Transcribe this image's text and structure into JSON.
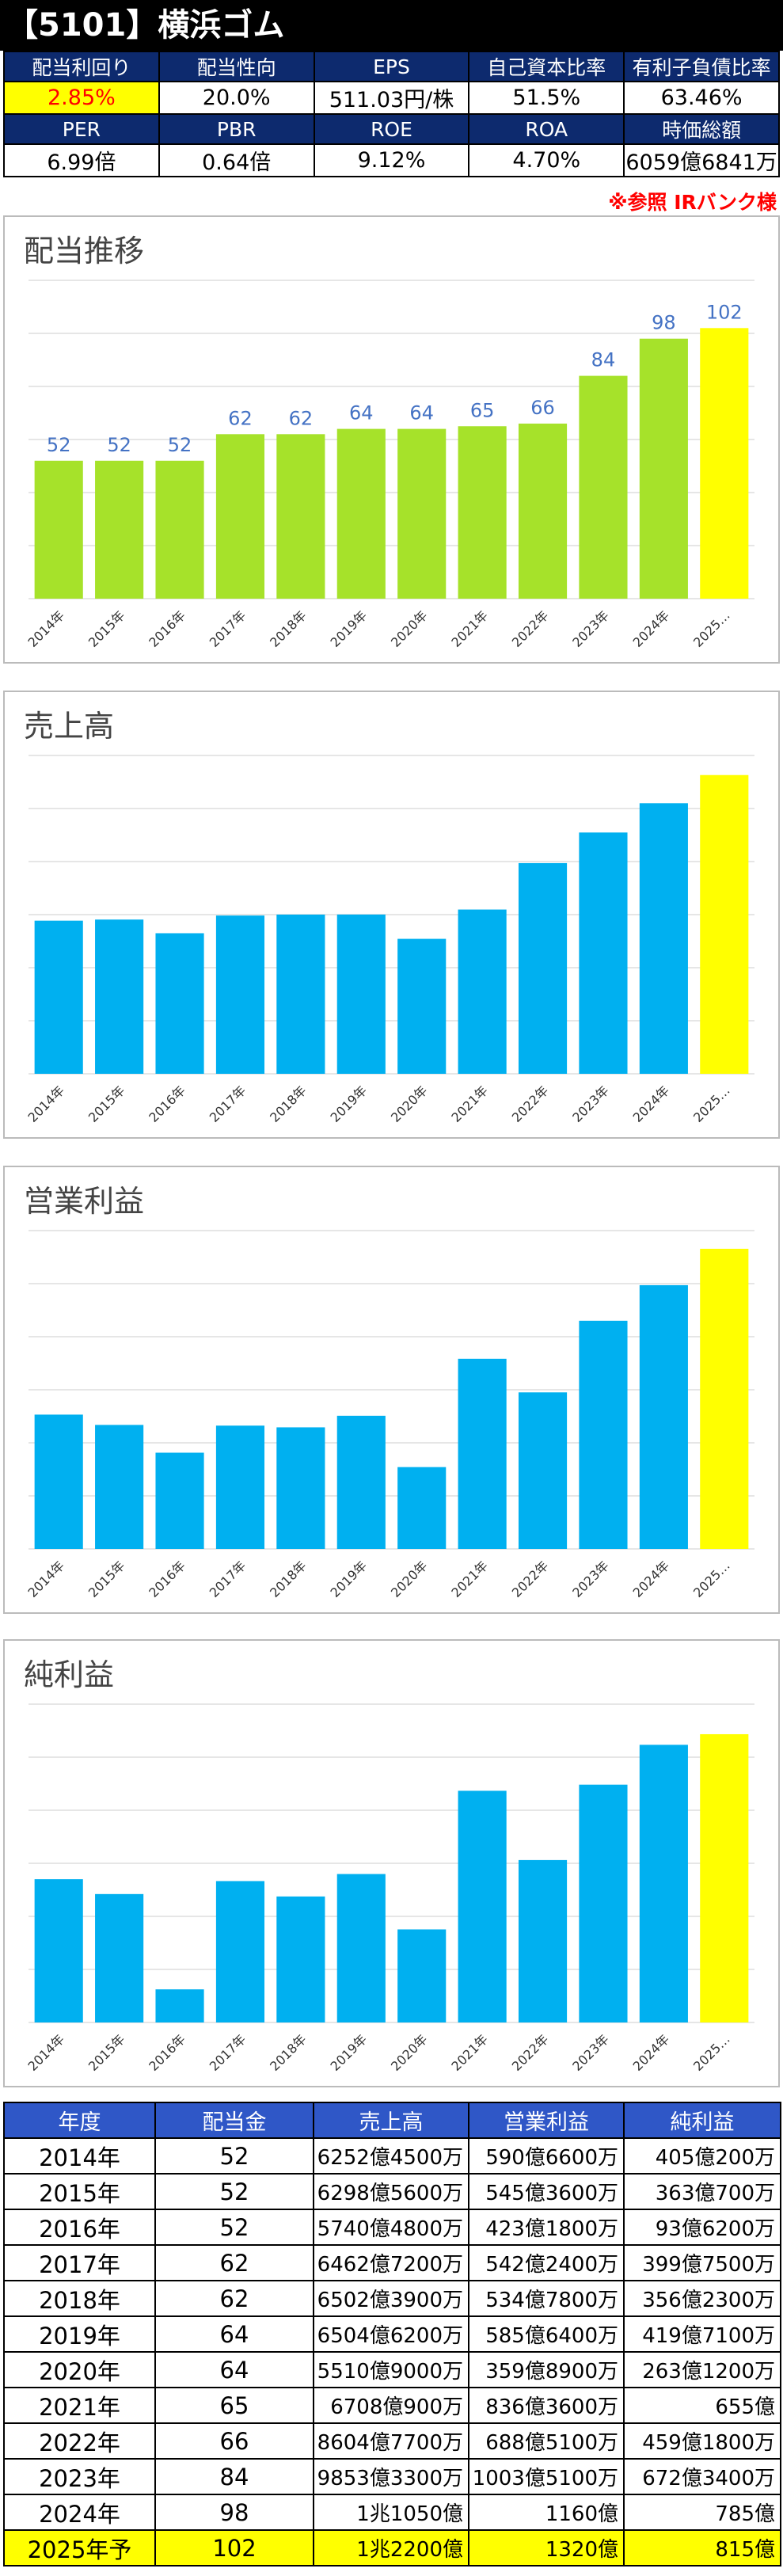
{
  "header": {
    "title": "【5101】横浜ゴム"
  },
  "metrics": {
    "row1_labels": [
      "配当利回り",
      "配当性向",
      "EPS",
      "自己資本比率",
      "有利子負債比率"
    ],
    "row1_values": [
      "2.85%",
      "20.0%",
      "511.03円/株",
      "51.5%",
      "63.46%"
    ],
    "row2_labels": [
      "PER",
      "PBR",
      "ROE",
      "ROA",
      "時価総額"
    ],
    "row2_values": [
      "6.99倍",
      "0.64倍",
      "9.12%",
      "4.70%",
      "6059億6841万"
    ]
  },
  "note": "※参照 IRバンク様",
  "colors": {
    "dividend_bar": "#a6e22a",
    "bar": "#00b0f0",
    "forecast_bar": "#ffff00",
    "value_label": "#4472c4",
    "header_bg": "#0d2a6e",
    "table_header_bg": "#2f57c7"
  },
  "chart_data": [
    {
      "type": "bar",
      "title": "配当推移",
      "categories": [
        "2014年",
        "2015年",
        "2016年",
        "2017年",
        "2018年",
        "2019年",
        "2020年",
        "2021年",
        "2022年",
        "2023年",
        "2024年",
        "2025…"
      ],
      "values": [
        52,
        52,
        52,
        62,
        62,
        64,
        64,
        65,
        66,
        84,
        98,
        102
      ],
      "data_labels": [
        "52",
        "52",
        "52",
        "62",
        "62",
        "64",
        "64",
        "65",
        "66",
        "84",
        "98",
        "102"
      ],
      "ylim": [
        0,
        120
      ],
      "grid": true
    },
    {
      "type": "bar",
      "title": "売上高",
      "categories": [
        "2014年",
        "2015年",
        "2016年",
        "2017年",
        "2018年",
        "2019年",
        "2020年",
        "2021年",
        "2022年",
        "2023年",
        "2024年",
        "2025…"
      ],
      "values": [
        6252.45,
        6298.56,
        5740.48,
        6462.72,
        6502.39,
        6504.62,
        5510.9,
        6708.09,
        8604.77,
        9853.33,
        11050,
        12200
      ],
      "ylim": [
        0,
        13000
      ],
      "grid": true
    },
    {
      "type": "bar",
      "title": "営業利益",
      "categories": [
        "2014年",
        "2015年",
        "2016年",
        "2017年",
        "2018年",
        "2019年",
        "2020年",
        "2021年",
        "2022年",
        "2023年",
        "2024年",
        "2025…"
      ],
      "values": [
        590.66,
        545.36,
        423.18,
        542.24,
        534.78,
        585.64,
        359.89,
        836.36,
        688.51,
        1003.51,
        1160,
        1320
      ],
      "ylim": [
        0,
        1400
      ],
      "grid": true
    },
    {
      "type": "bar",
      "title": "純利益",
      "categories": [
        "2014年",
        "2015年",
        "2016年",
        "2017年",
        "2018年",
        "2019年",
        "2020年",
        "2021年",
        "2022年",
        "2023年",
        "2024年",
        "2025…"
      ],
      "values": [
        405.02,
        363.07,
        93.62,
        399.75,
        356.23,
        419.71,
        263.12,
        655,
        459.18,
        672.34,
        785,
        815
      ],
      "ylim": [
        0,
        900
      ],
      "grid": true
    }
  ],
  "table": {
    "headers": [
      "年度",
      "配当金",
      "売上高",
      "営業利益",
      "純利益"
    ],
    "rows": [
      [
        "2014年",
        "52",
        "6252億4500万",
        "590億6600万",
        "405億200万"
      ],
      [
        "2015年",
        "52",
        "6298億5600万",
        "545億3600万",
        "363億700万"
      ],
      [
        "2016年",
        "52",
        "5740億4800万",
        "423億1800万",
        "93億6200万"
      ],
      [
        "2017年",
        "62",
        "6462億7200万",
        "542億2400万",
        "399億7500万"
      ],
      [
        "2018年",
        "62",
        "6502億3900万",
        "534億7800万",
        "356億2300万"
      ],
      [
        "2019年",
        "64",
        "6504億6200万",
        "585億6400万",
        "419億7100万"
      ],
      [
        "2020年",
        "64",
        "5510億9000万",
        "359億8900万",
        "263億1200万"
      ],
      [
        "2021年",
        "65",
        "6708億900万",
        "836億3600万",
        "655億"
      ],
      [
        "2022年",
        "66",
        "8604億7700万",
        "688億5100万",
        "459億1800万"
      ],
      [
        "2023年",
        "84",
        "9853億3300万",
        "1003億5100万",
        "672億3400万"
      ],
      [
        "2024年",
        "98",
        "1兆1050億",
        "1160億",
        "785億"
      ],
      [
        "2025年予",
        "102",
        "1兆2200億",
        "1320億",
        "815億"
      ]
    ]
  }
}
